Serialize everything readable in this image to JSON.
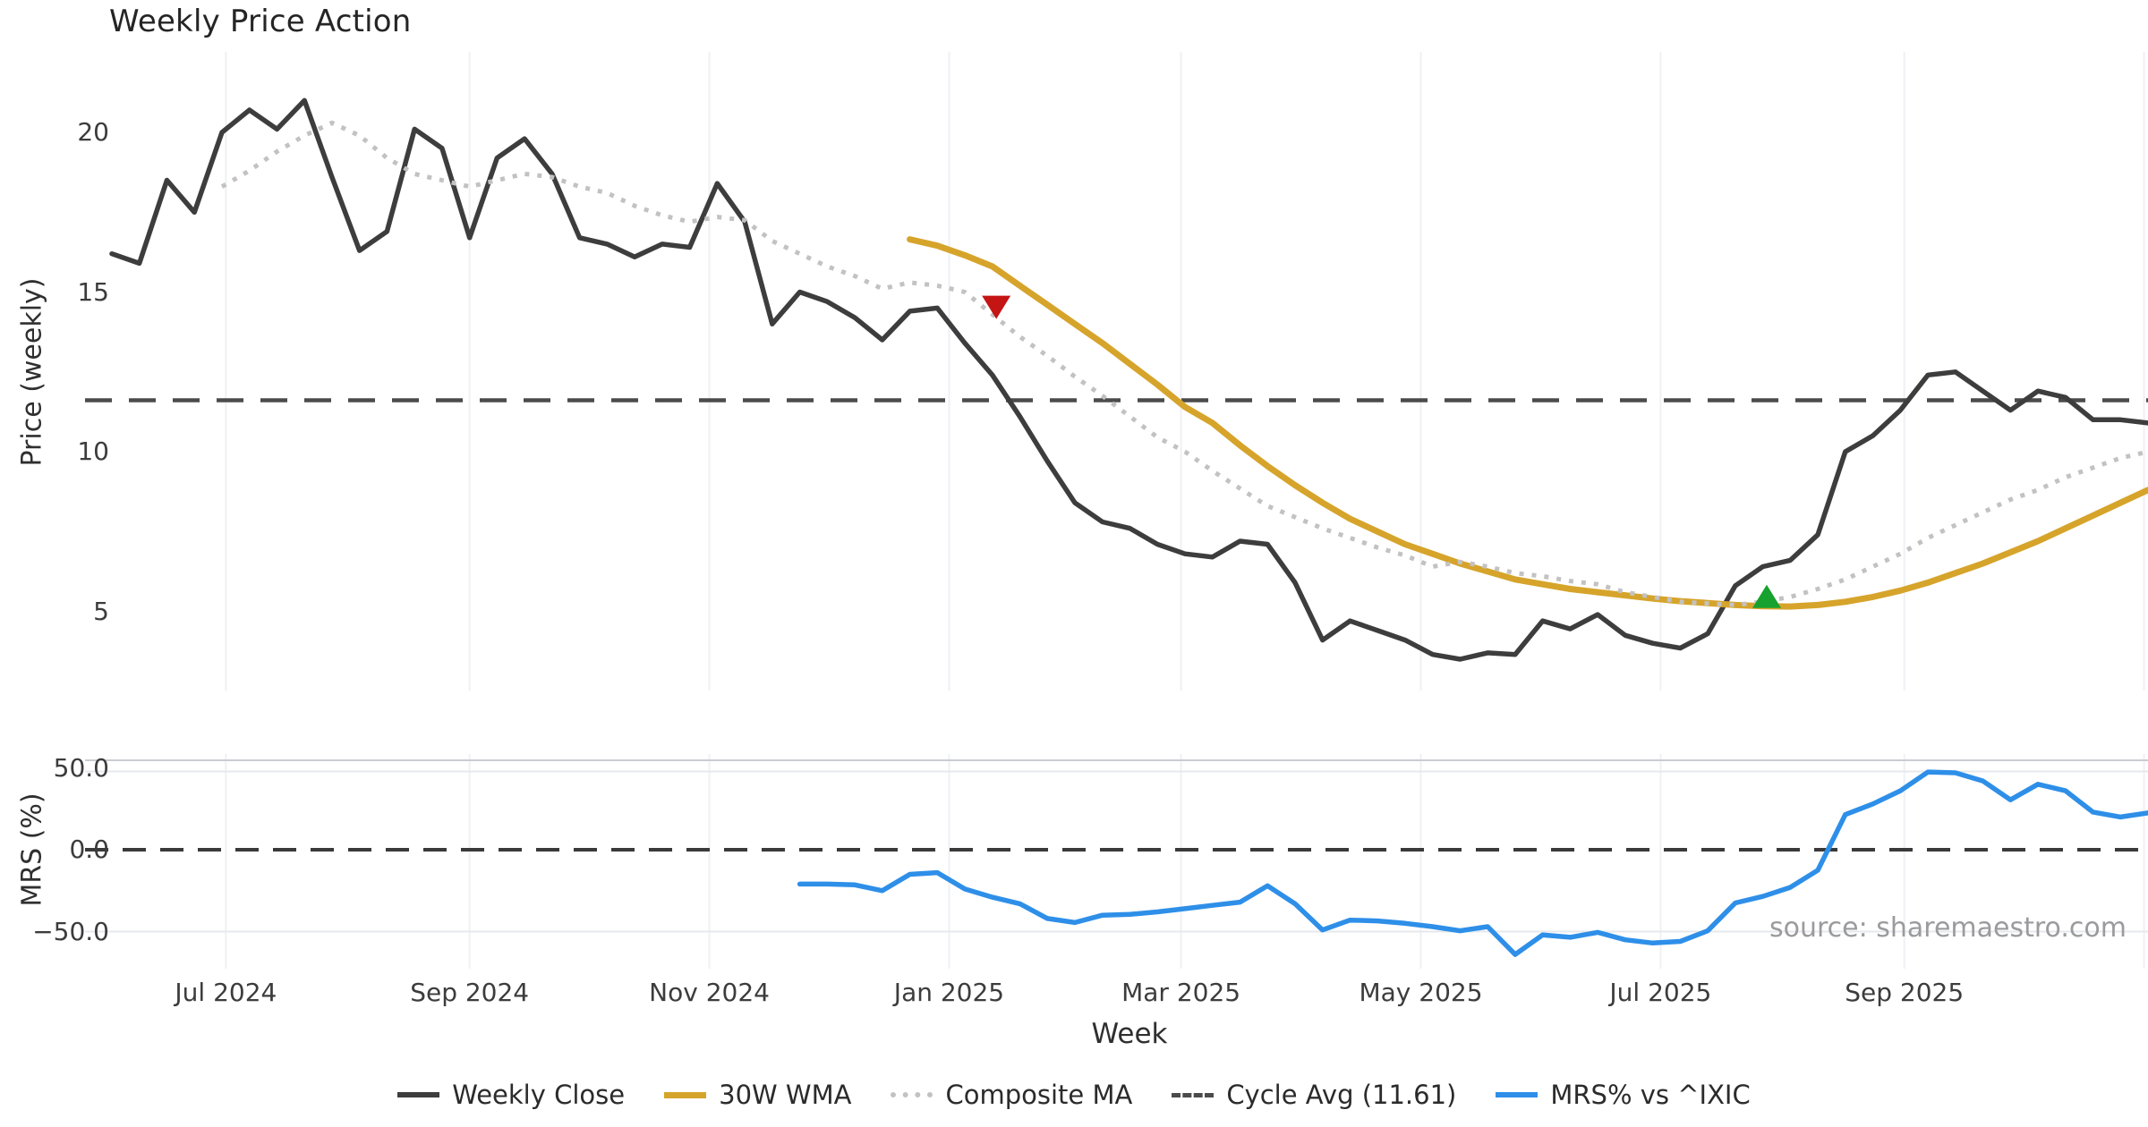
{
  "title": "Weekly Price Action",
  "watermark": "source: sharemaestro.com",
  "axes": {
    "x_label": "Week",
    "price_label": "Price (weekly)",
    "mrs_label": "MRS (%)",
    "price_ticks": [
      {
        "label": "20",
        "value": 20
      },
      {
        "label": "15",
        "value": 15
      },
      {
        "label": "10",
        "value": 10
      },
      {
        "label": "5",
        "value": 5
      }
    ],
    "mrs_ticks": [
      {
        "label": "50.0",
        "value": 50
      },
      {
        "label": "0.0",
        "value": 0
      },
      {
        "label": "−50.0",
        "value": -50
      }
    ],
    "x_ticks": [
      {
        "label": "Jul 2024",
        "date": "2024-07-01"
      },
      {
        "label": "Sep 2024",
        "date": "2024-09-01"
      },
      {
        "label": "Nov 2024",
        "date": "2024-11-01"
      },
      {
        "label": "Jan 2025",
        "date": "2025-01-01"
      },
      {
        "label": "Mar 2025",
        "date": "2025-03-01"
      },
      {
        "label": "May 2025",
        "date": "2025-05-01"
      },
      {
        "label": "Jul 2025",
        "date": "2025-07-01"
      },
      {
        "label": "Sep 2025",
        "date": "2025-09-01"
      }
    ]
  },
  "legend": [
    {
      "label": "Weekly Close",
      "color": "#3d3d3d",
      "style": "solid",
      "thickness": 6
    },
    {
      "label": "30W WMA",
      "color": "#d6a42b",
      "style": "solid",
      "thickness": 7
    },
    {
      "label": "Composite MA",
      "color": "#c2c2c2",
      "style": "dotted",
      "thickness": 6
    },
    {
      "label": "Cycle Avg (11.61)",
      "color": "#4b4b4b",
      "style": "dashed",
      "thickness": 5
    },
    {
      "label": "MRS% vs ^IXIC",
      "color": "#2e8fe8",
      "style": "solid",
      "thickness": 6
    }
  ],
  "colors": {
    "background": "#ffffff",
    "grid_vertical": "#eef1f5",
    "grid_mrs_top": "#c9ccd1",
    "grid_mrs_light": "#e6e8ec",
    "tick_text": "#3c3c3c",
    "weekly_close": "#3d3d3d",
    "wma": "#d6a42b",
    "composite": "#c2c2c2",
    "cycle_avg": "#4b4b4b",
    "mrs": "#2e8fe8",
    "marker_sell": "#c41414",
    "marker_buy": "#17a12e"
  },
  "chart_data": {
    "type": "line",
    "title": "Weekly Price Action",
    "xlabel": "Week",
    "x_start_date": "2024-06-02",
    "x_step_days": 7,
    "n_weeks": 75,
    "extra_gridline_dates": [
      "2025-11-01"
    ],
    "panels": [
      {
        "name": "price",
        "ylabel": "Price (weekly)",
        "ylim": [
          2.5,
          22.5
        ],
        "yticks": [
          20,
          15,
          10,
          5
        ],
        "hlines": [
          {
            "name": "Cycle Avg",
            "value": 11.61,
            "color": "#4b4b4b",
            "style": "dashed"
          }
        ],
        "series": [
          {
            "name": "Weekly Close",
            "color": "#3d3d3d",
            "style": "solid",
            "width": 5.5,
            "start_week": 0,
            "values": [
              16.2,
              15.9,
              18.5,
              17.5,
              20.0,
              20.7,
              20.1,
              21.0,
              18.6,
              16.3,
              16.9,
              20.1,
              19.5,
              16.7,
              19.2,
              19.8,
              18.7,
              16.7,
              16.5,
              16.1,
              16.5,
              16.4,
              18.4,
              17.2,
              14.0,
              15.0,
              14.7,
              14.2,
              13.5,
              14.4,
              14.5,
              13.4,
              12.4,
              11.1,
              9.7,
              8.4,
              7.8,
              7.6,
              7.1,
              6.8,
              6.7,
              7.2,
              7.1,
              5.9,
              4.1,
              4.7,
              4.4,
              4.1,
              3.65,
              3.5,
              3.7,
              3.65,
              4.7,
              4.45,
              4.9,
              4.25,
              4.0,
              3.85,
              4.3,
              5.8,
              6.4,
              6.6,
              7.4,
              10.0,
              10.5,
              11.3,
              12.4,
              12.5,
              11.9,
              11.3,
              11.9,
              11.7,
              11.0,
              11.0,
              10.9
            ]
          },
          {
            "name": "30W WMA",
            "color": "#d6a42b",
            "style": "solid",
            "width": 7,
            "start_week": 29,
            "values": [
              16.65,
              16.45,
              16.15,
              15.8,
              15.2,
              14.6,
              14.0,
              13.4,
              12.75,
              12.1,
              11.4,
              10.9,
              10.2,
              9.55,
              8.95,
              8.4,
              7.9,
              7.5,
              7.1,
              6.8,
              6.5,
              6.25,
              6.0,
              5.85,
              5.7,
              5.6,
              5.5,
              5.4,
              5.32,
              5.26,
              5.2,
              5.16,
              5.15,
              5.2,
              5.3,
              5.45,
              5.65,
              5.9,
              6.2,
              6.5,
              6.85,
              7.2,
              7.6,
              8.0,
              8.4,
              8.8
            ]
          },
          {
            "name": "Composite MA",
            "color": "#c2c2c2",
            "style": "dotted",
            "width": 5,
            "start_week": 4,
            "values": [
              18.3,
              18.8,
              19.4,
              19.9,
              20.3,
              19.9,
              19.2,
              18.7,
              18.5,
              18.3,
              18.5,
              18.7,
              18.6,
              18.3,
              18.1,
              17.7,
              17.4,
              17.2,
              17.35,
              17.25,
              16.6,
              16.2,
              15.8,
              15.5,
              15.1,
              15.3,
              15.2,
              15.0,
              14.3,
              13.6,
              13.0,
              12.35,
              11.75,
              11.1,
              10.45,
              10.0,
              9.4,
              8.85,
              8.3,
              7.95,
              7.6,
              7.3,
              7.0,
              6.75,
              6.4,
              6.55,
              6.4,
              6.2,
              6.1,
              5.95,
              5.85,
              5.6,
              5.45,
              5.3,
              5.25,
              5.2,
              5.3,
              5.45,
              5.7,
              6.0,
              6.4,
              6.8,
              7.3,
              7.7,
              8.1,
              8.5,
              8.8,
              9.2,
              9.5,
              9.8,
              10.0
            ]
          }
        ],
        "markers": [
          {
            "shape": "triangle-down",
            "color": "#c41414",
            "date": "2025-01-13",
            "value": 14.55,
            "meaning": "bearish-cross-signal"
          },
          {
            "shape": "triangle-up",
            "color": "#17a12e",
            "date": "2025-07-28",
            "value": 5.44,
            "meaning": "bullish-cross-signal"
          }
        ]
      },
      {
        "name": "mrs",
        "ylabel": "MRS (%)",
        "ylim": [
          -72,
          58
        ],
        "yticks": [
          50,
          0,
          -50
        ],
        "hlines": [
          {
            "name": "zero",
            "value": 0,
            "color": "#3a3a3a",
            "style": "dashed"
          }
        ],
        "series": [
          {
            "name": "MRS% vs ^IXIC",
            "color": "#2e8fe8",
            "style": "solid",
            "width": 5.5,
            "start_week": 25,
            "values": [
              -21,
              -21,
              -21.5,
              -25,
              -15,
              -14,
              -24,
              -29,
              -33,
              -42,
              -44.5,
              -40,
              -39.5,
              -38,
              -36,
              -34,
              -32,
              -22,
              -33,
              -49,
              -43,
              -43.5,
              -45,
              -47,
              -49.5,
              -47,
              -64,
              -52,
              -53.5,
              -50.5,
              -55,
              -57,
              -56,
              -49.5,
              -32.5,
              -28.5,
              -23,
              -12.5,
              21.5,
              28,
              36,
              47.5,
              47,
              42,
              30.5,
              40,
              36,
              23,
              20,
              22.5
            ]
          }
        ]
      }
    ]
  }
}
